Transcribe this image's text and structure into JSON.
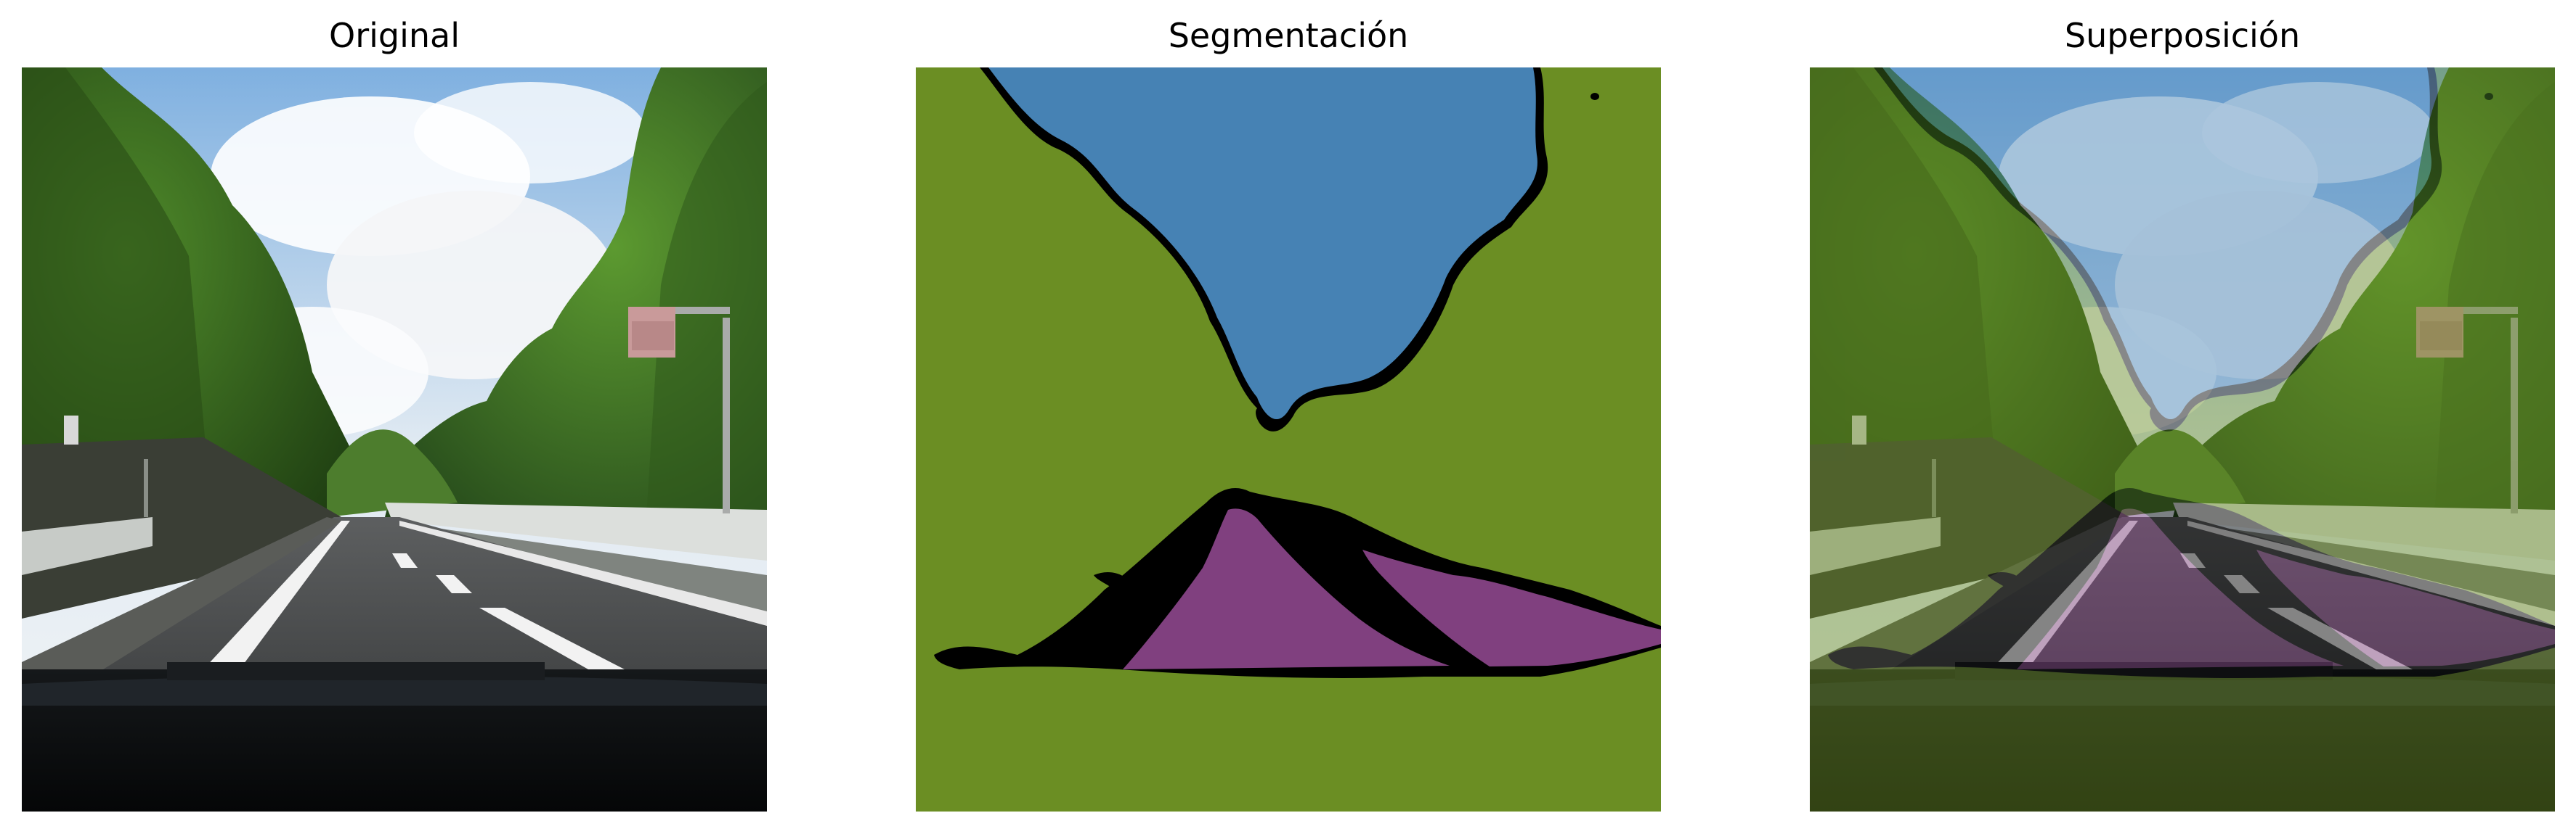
{
  "panels": [
    {
      "title": "Original"
    },
    {
      "title": "Segmentación"
    },
    {
      "title": "Superposición"
    }
  ],
  "colors": {
    "sky_class": "#4682b4",
    "vegetation_class": "#6b8e23",
    "road_class": "#80407f",
    "boundary": "#000000"
  }
}
